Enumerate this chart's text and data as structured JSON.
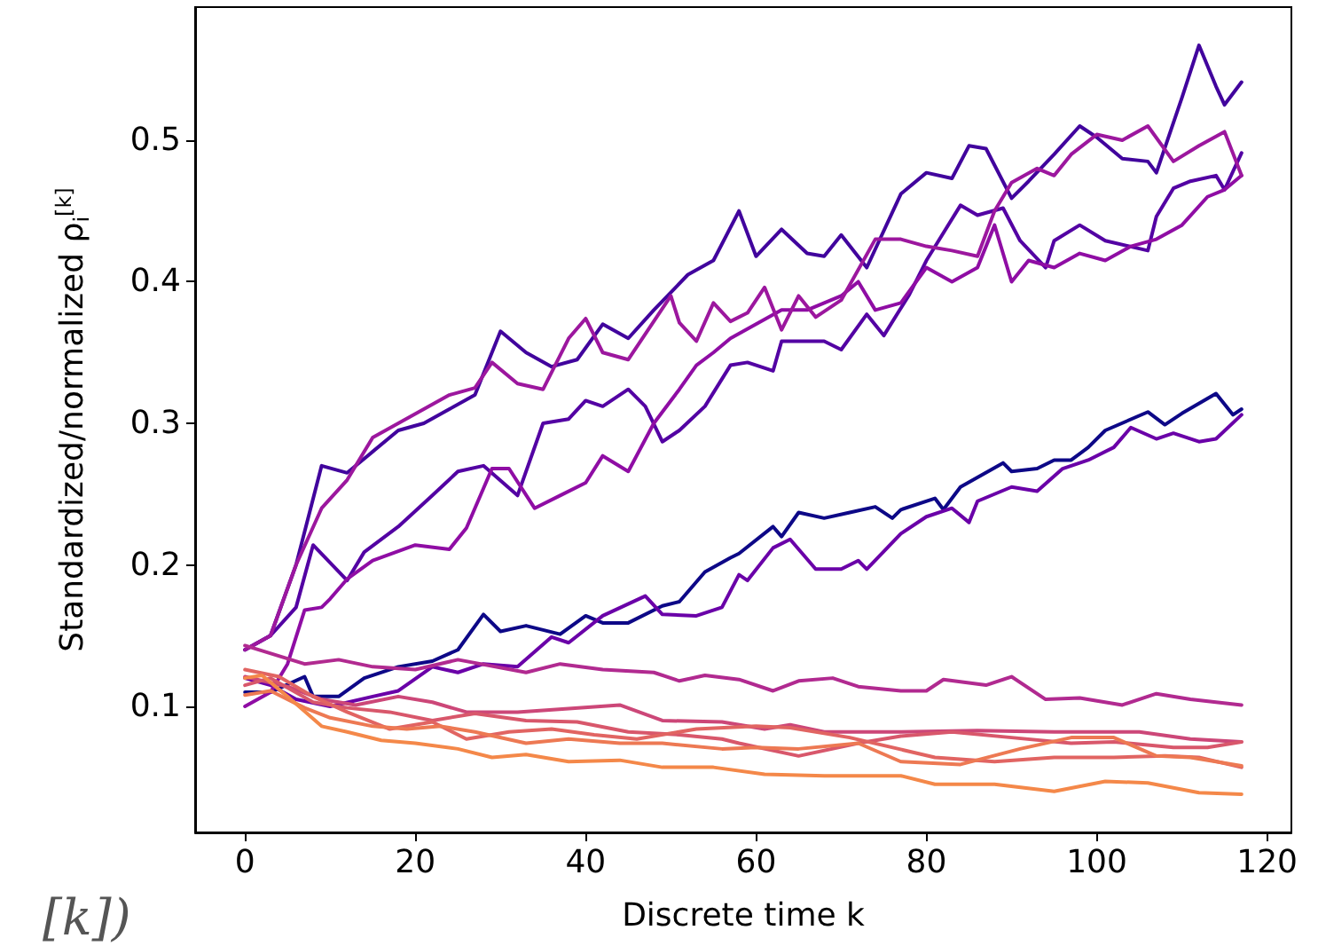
{
  "chart_data": {
    "type": "line",
    "xlabel": "Discrete time k",
    "ylabel": "Standardized/normalized ρ$_{i}$$^{[k]}$",
    "annotations": [
      "[k])"
    ],
    "xlim": [
      -5.85,
      122.85
    ],
    "ylim": [
      0.011,
      0.594
    ],
    "xticks": [
      0,
      20,
      40,
      60,
      80,
      100,
      120
    ],
    "yticks": [
      0.1,
      0.2,
      0.3,
      0.4,
      0.5
    ],
    "grid": false,
    "marker": "none",
    "line_style": "solid",
    "series": [
      {
        "color": "#0d0887",
        "x": [
          0,
          3,
          7,
          8,
          11,
          14,
          18,
          22,
          25,
          28,
          30,
          33,
          37,
          40,
          42,
          45,
          49,
          51,
          54,
          57,
          58,
          62,
          63,
          65,
          68,
          71,
          74,
          76,
          77,
          81,
          82,
          84,
          89,
          90,
          93,
          95,
          97,
          99,
          101,
          106,
          108,
          110,
          114,
          116,
          117
        ],
        "values": [
          0.11,
          0.11,
          0.121,
          0.107,
          0.107,
          0.12,
          0.128,
          0.132,
          0.14,
          0.165,
          0.153,
          0.157,
          0.151,
          0.164,
          0.159,
          0.159,
          0.171,
          0.174,
          0.195,
          0.205,
          0.208,
          0.227,
          0.22,
          0.237,
          0.233,
          0.237,
          0.241,
          0.233,
          0.239,
          0.247,
          0.239,
          0.255,
          0.272,
          0.266,
          0.268,
          0.274,
          0.274,
          0.283,
          0.295,
          0.308,
          0.299,
          0.307,
          0.321,
          0.306,
          0.31
        ]
      },
      {
        "color": "#41049d",
        "x": [
          0,
          3,
          6,
          9,
          12,
          15,
          18,
          21,
          24,
          27,
          30,
          33,
          36,
          39,
          42,
          45,
          48,
          52,
          55,
          58,
          60,
          63,
          66,
          68,
          70,
          73,
          77,
          80,
          83,
          85,
          87,
          90,
          92,
          95,
          98,
          100,
          103,
          106,
          107,
          110,
          112,
          114,
          115,
          117
        ],
        "values": [
          0.14,
          0.15,
          0.2,
          0.27,
          0.265,
          0.28,
          0.295,
          0.3,
          0.31,
          0.32,
          0.365,
          0.35,
          0.34,
          0.345,
          0.37,
          0.36,
          0.38,
          0.405,
          0.415,
          0.45,
          0.418,
          0.437,
          0.42,
          0.418,
          0.433,
          0.41,
          0.462,
          0.477,
          0.473,
          0.496,
          0.494,
          0.459,
          0.471,
          0.49,
          0.51,
          0.502,
          0.487,
          0.485,
          0.477,
          0.53,
          0.567,
          0.538,
          0.525,
          0.541
        ]
      },
      {
        "color": "#5302a3",
        "x": [
          0,
          3,
          6,
          8,
          12,
          14,
          18,
          22,
          25,
          28,
          32,
          35,
          38,
          40,
          42,
          45,
          47,
          49,
          51,
          54,
          57,
          59,
          62,
          63,
          68,
          70,
          73,
          75,
          78,
          80,
          84,
          86,
          89,
          91,
          94,
          95,
          98,
          101,
          106,
          107,
          109,
          111,
          114,
          115,
          117
        ],
        "values": [
          0.14,
          0.15,
          0.17,
          0.214,
          0.189,
          0.209,
          0.227,
          0.249,
          0.266,
          0.27,
          0.249,
          0.3,
          0.303,
          0.316,
          0.312,
          0.324,
          0.312,
          0.287,
          0.295,
          0.312,
          0.341,
          0.343,
          0.337,
          0.358,
          0.358,
          0.352,
          0.377,
          0.362,
          0.391,
          0.415,
          0.454,
          0.447,
          0.452,
          0.429,
          0.41,
          0.429,
          0.44,
          0.429,
          0.422,
          0.446,
          0.466,
          0.471,
          0.475,
          0.465,
          0.491
        ]
      },
      {
        "color": "#6a00a8",
        "x": [
          0,
          3,
          6,
          10,
          15,
          18,
          22,
          25,
          28,
          32,
          36,
          38,
          42,
          47,
          49,
          53,
          56,
          58,
          59,
          62,
          64,
          67,
          70,
          72,
          73,
          77,
          80,
          83,
          85,
          86,
          90,
          93,
          96,
          99,
          102,
          104,
          107,
          109,
          112,
          114,
          117
        ],
        "values": [
          0.12,
          0.115,
          0.105,
          0.1,
          0.107,
          0.111,
          0.128,
          0.124,
          0.13,
          0.128,
          0.149,
          0.145,
          0.164,
          0.178,
          0.165,
          0.164,
          0.17,
          0.193,
          0.189,
          0.212,
          0.218,
          0.197,
          0.197,
          0.203,
          0.197,
          0.222,
          0.234,
          0.24,
          0.23,
          0.245,
          0.255,
          0.252,
          0.268,
          0.274,
          0.283,
          0.297,
          0.289,
          0.293,
          0.287,
          0.289,
          0.306
        ]
      },
      {
        "color": "#8f0da4",
        "x": [
          0,
          3,
          5,
          7,
          9,
          10,
          12,
          15,
          20,
          24,
          26,
          29,
          31,
          34,
          37,
          40,
          42,
          45,
          48,
          51,
          53,
          55,
          57,
          60,
          63,
          66,
          70,
          72,
          74,
          77,
          80,
          83,
          86,
          88,
          90,
          92,
          95,
          98,
          101,
          104,
          107,
          110,
          113,
          115,
          117
        ],
        "values": [
          0.1,
          0.11,
          0.13,
          0.168,
          0.17,
          0.176,
          0.19,
          0.203,
          0.214,
          0.211,
          0.226,
          0.268,
          0.268,
          0.24,
          0.249,
          0.258,
          0.277,
          0.266,
          0.3,
          0.324,
          0.341,
          0.35,
          0.36,
          0.37,
          0.38,
          0.38,
          0.39,
          0.4,
          0.38,
          0.385,
          0.41,
          0.4,
          0.41,
          0.44,
          0.4,
          0.415,
          0.41,
          0.42,
          0.415,
          0.425,
          0.43,
          0.44,
          0.46,
          0.465,
          0.475
        ]
      },
      {
        "color": "#9c179e",
        "x": [
          0,
          3,
          6,
          9,
          12,
          15,
          18,
          21,
          24,
          27,
          29,
          32,
          35,
          38,
          40,
          42,
          45,
          50,
          51,
          53,
          55,
          57,
          59,
          61,
          63,
          65,
          67,
          70,
          74,
          77,
          80,
          83,
          86,
          88,
          90,
          93,
          95,
          97,
          100,
          103,
          106,
          109,
          112,
          115,
          117
        ],
        "values": [
          0.14,
          0.15,
          0.2,
          0.24,
          0.26,
          0.29,
          0.3,
          0.31,
          0.32,
          0.325,
          0.343,
          0.328,
          0.324,
          0.36,
          0.374,
          0.35,
          0.345,
          0.39,
          0.371,
          0.358,
          0.385,
          0.372,
          0.378,
          0.396,
          0.366,
          0.39,
          0.375,
          0.387,
          0.43,
          0.43,
          0.425,
          0.422,
          0.418,
          0.45,
          0.47,
          0.48,
          0.475,
          0.49,
          0.504,
          0.5,
          0.51,
          0.485,
          0.496,
          0.506,
          0.475
        ]
      },
      {
        "color": "#b12a90",
        "x": [
          0,
          7,
          11,
          15,
          20,
          25,
          33,
          37,
          42,
          48,
          51,
          54,
          58,
          62,
          65,
          69,
          72,
          77,
          80,
          82,
          87,
          90,
          94,
          98,
          103,
          107,
          111,
          117
        ],
        "values": [
          0.143,
          0.13,
          0.133,
          0.128,
          0.126,
          0.133,
          0.124,
          0.13,
          0.126,
          0.124,
          0.118,
          0.122,
          0.119,
          0.111,
          0.118,
          0.12,
          0.114,
          0.111,
          0.111,
          0.119,
          0.115,
          0.121,
          0.105,
          0.106,
          0.101,
          0.109,
          0.105,
          0.101
        ]
      },
      {
        "color": "#cc4778",
        "x": [
          0,
          5,
          9,
          13,
          18,
          22,
          26,
          32,
          44,
          49,
          56,
          61,
          64,
          68,
          77,
          86,
          95,
          105,
          111,
          117
        ],
        "values": [
          0.121,
          0.114,
          0.105,
          0.101,
          0.107,
          0.103,
          0.096,
          0.096,
          0.101,
          0.09,
          0.089,
          0.084,
          0.087,
          0.082,
          0.082,
          0.083,
          0.082,
          0.082,
          0.077,
          0.075
        ]
      },
      {
        "color": "#d8576b",
        "x": [
          0,
          3,
          8,
          12,
          17,
          22,
          27,
          33,
          39,
          45,
          51,
          56,
          58,
          65,
          72,
          77,
          83,
          90,
          97,
          102,
          109,
          113,
          117
        ],
        "values": [
          0.115,
          0.12,
          0.103,
          0.099,
          0.096,
          0.09,
          0.095,
          0.09,
          0.089,
          0.082,
          0.08,
          0.077,
          0.074,
          0.065,
          0.074,
          0.079,
          0.082,
          0.078,
          0.074,
          0.075,
          0.071,
          0.071,
          0.075
        ]
      },
      {
        "color": "#e16462",
        "x": [
          0,
          4,
          8,
          12,
          17,
          22,
          26,
          31,
          36,
          41,
          46,
          53,
          60,
          64,
          71,
          81,
          88,
          95,
          102,
          108,
          112,
          117
        ],
        "values": [
          0.126,
          0.121,
          0.107,
          0.096,
          0.084,
          0.089,
          0.077,
          0.082,
          0.084,
          0.08,
          0.077,
          0.084,
          0.086,
          0.085,
          0.078,
          0.064,
          0.061,
          0.064,
          0.064,
          0.065,
          0.064,
          0.057
        ]
      },
      {
        "color": "#ed7953",
        "x": [
          0,
          3,
          7,
          10,
          15,
          19,
          23,
          27,
          33,
          38,
          44,
          49,
          56,
          60,
          65,
          72,
          77,
          84,
          91,
          97,
          102,
          107,
          111,
          117
        ],
        "values": [
          0.108,
          0.111,
          0.099,
          0.092,
          0.086,
          0.084,
          0.086,
          0.082,
          0.074,
          0.077,
          0.074,
          0.074,
          0.07,
          0.071,
          0.07,
          0.074,
          0.061,
          0.059,
          0.07,
          0.078,
          0.078,
          0.065,
          0.064,
          0.058
        ]
      },
      {
        "color": "#f48849",
        "x": [
          0,
          2,
          5,
          9,
          12,
          16,
          20,
          25,
          29,
          33,
          38,
          44,
          49,
          55,
          61,
          68,
          77,
          81,
          88,
          95,
          101,
          106,
          112,
          117
        ],
        "values": [
          0.12,
          0.122,
          0.107,
          0.086,
          0.082,
          0.076,
          0.074,
          0.07,
          0.064,
          0.066,
          0.061,
          0.062,
          0.057,
          0.057,
          0.052,
          0.051,
          0.051,
          0.045,
          0.045,
          0.04,
          0.047,
          0.046,
          0.039,
          0.038
        ]
      }
    ]
  }
}
